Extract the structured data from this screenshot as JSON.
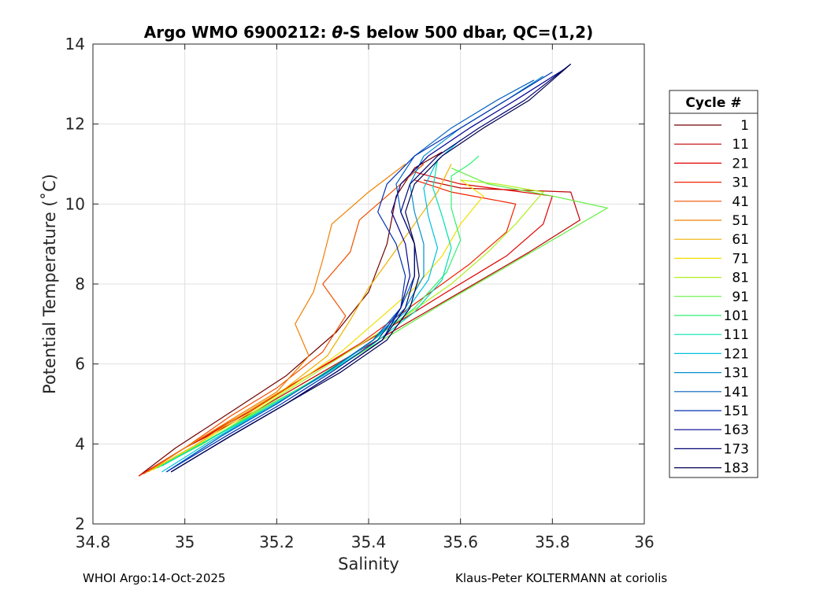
{
  "chart_data": {
    "type": "line",
    "title_prefix": "Argo WMO 6900212: ",
    "title_theta": "θ",
    "title_suffix": "-S below 500 dbar,  QC=(1,2)",
    "xlabel": "Salinity",
    "ylabel": "Potential Temperature (˚C)",
    "xlim": [
      34.8,
      36
    ],
    "ylim": [
      2,
      14
    ],
    "xticks": [
      "34.8",
      "35",
      "35.2",
      "35.4",
      "35.6",
      "35.8",
      "36"
    ],
    "yticks": [
      "2",
      "4",
      "6",
      "8",
      "10",
      "12",
      "14"
    ],
    "grid": true,
    "legend": {
      "title": "Cycle #",
      "position": "outside-right",
      "entries": [
        {
          "label": "1",
          "color": "#700000"
        },
        {
          "label": "11",
          "color": "#c00000"
        },
        {
          "label": "21",
          "color": "#e00000"
        },
        {
          "label": "31",
          "color": "#f02000"
        },
        {
          "label": "41",
          "color": "#f05000"
        },
        {
          "label": "51",
          "color": "#f08000"
        },
        {
          "label": "61",
          "color": "#f0b000"
        },
        {
          "label": "71",
          "color": "#f0e000"
        },
        {
          "label": "81",
          "color": "#b0f020"
        },
        {
          "label": "91",
          "color": "#60f040"
        },
        {
          "label": "101",
          "color": "#30f070"
        },
        {
          "label": "111",
          "color": "#00e0b0"
        },
        {
          "label": "121",
          "color": "#00c0e0"
        },
        {
          "label": "131",
          "color": "#0090d0"
        },
        {
          "label": "141",
          "color": "#0060c0"
        },
        {
          "label": "151",
          "color": "#0030b0"
        },
        {
          "label": "163",
          "color": "#000090"
        },
        {
          "label": "173",
          "color": "#000070"
        },
        {
          "label": "183",
          "color": "#000050"
        }
      ]
    },
    "series": [
      {
        "name": "1",
        "points": [
          [
            34.9,
            3.2
          ],
          [
            34.98,
            3.9
          ],
          [
            35.1,
            4.8
          ],
          [
            35.22,
            5.7
          ],
          [
            35.33,
            6.8
          ],
          [
            35.4,
            7.8
          ],
          [
            35.44,
            9.0
          ],
          [
            35.46,
            10.2
          ],
          [
            35.5,
            10.9
          ],
          [
            35.56,
            11.3
          ]
        ]
      },
      {
        "name": "11",
        "points": [
          [
            34.9,
            3.2
          ],
          [
            35.0,
            3.9
          ],
          [
            35.15,
            4.8
          ],
          [
            35.3,
            5.8
          ],
          [
            35.45,
            6.8
          ],
          [
            35.6,
            7.8
          ],
          [
            35.75,
            8.8
          ],
          [
            35.86,
            9.6
          ],
          [
            35.84,
            10.3
          ],
          [
            35.6,
            10.4
          ],
          [
            35.52,
            10.6
          ]
        ]
      },
      {
        "name": "21",
        "points": [
          [
            34.9,
            3.2
          ],
          [
            35.0,
            3.9
          ],
          [
            35.14,
            4.8
          ],
          [
            35.28,
            5.8
          ],
          [
            35.43,
            6.8
          ],
          [
            35.57,
            7.8
          ],
          [
            35.7,
            8.7
          ],
          [
            35.78,
            9.5
          ],
          [
            35.8,
            10.2
          ],
          [
            35.6,
            10.5
          ],
          [
            35.5,
            10.8
          ]
        ]
      },
      {
        "name": "31",
        "points": [
          [
            34.9,
            3.2
          ],
          [
            35.0,
            3.9
          ],
          [
            35.12,
            4.7
          ],
          [
            35.25,
            5.6
          ],
          [
            35.38,
            6.5
          ],
          [
            35.5,
            7.5
          ],
          [
            35.62,
            8.5
          ],
          [
            35.7,
            9.3
          ],
          [
            35.72,
            10.0
          ],
          [
            35.58,
            10.3
          ],
          [
            35.5,
            10.6
          ]
        ]
      },
      {
        "name": "41",
        "points": [
          [
            34.91,
            3.25
          ],
          [
            35.0,
            3.9
          ],
          [
            35.1,
            4.7
          ],
          [
            35.2,
            5.4
          ],
          [
            35.3,
            6.3
          ],
          [
            35.35,
            7.2
          ],
          [
            35.3,
            8.0
          ],
          [
            35.36,
            8.8
          ],
          [
            35.38,
            9.6
          ],
          [
            35.45,
            10.3
          ],
          [
            35.52,
            11.0
          ]
        ]
      },
      {
        "name": "51",
        "points": [
          [
            34.92,
            3.3
          ],
          [
            35.0,
            3.9
          ],
          [
            35.1,
            4.6
          ],
          [
            35.2,
            5.3
          ],
          [
            35.27,
            6.2
          ],
          [
            35.24,
            7.0
          ],
          [
            35.28,
            7.8
          ],
          [
            35.3,
            8.6
          ],
          [
            35.32,
            9.5
          ],
          [
            35.4,
            10.3
          ],
          [
            35.48,
            11.0
          ]
        ]
      },
      {
        "name": "61",
        "points": [
          [
            34.92,
            3.3
          ],
          [
            35.02,
            3.95
          ],
          [
            35.12,
            4.7
          ],
          [
            35.22,
            5.4
          ],
          [
            35.31,
            6.2
          ],
          [
            35.36,
            7.1
          ],
          [
            35.4,
            7.9
          ],
          [
            35.45,
            8.7
          ],
          [
            35.5,
            9.5
          ],
          [
            35.55,
            10.3
          ],
          [
            35.58,
            11.0
          ]
        ]
      },
      {
        "name": "71",
        "points": [
          [
            34.93,
            3.35
          ],
          [
            35.03,
            4.0
          ],
          [
            35.13,
            4.7
          ],
          [
            35.24,
            5.5
          ],
          [
            35.34,
            6.3
          ],
          [
            35.42,
            7.1
          ],
          [
            35.5,
            7.9
          ],
          [
            35.56,
            8.7
          ],
          [
            35.6,
            9.5
          ],
          [
            35.65,
            10.2
          ],
          [
            35.6,
            10.6
          ]
        ]
      },
      {
        "name": "81",
        "points": [
          [
            34.93,
            3.35
          ],
          [
            35.04,
            4.0
          ],
          [
            35.15,
            4.8
          ],
          [
            35.26,
            5.6
          ],
          [
            35.37,
            6.4
          ],
          [
            35.48,
            7.2
          ],
          [
            35.58,
            8.0
          ],
          [
            35.66,
            8.8
          ],
          [
            35.72,
            9.5
          ],
          [
            35.78,
            10.3
          ],
          [
            35.68,
            10.5
          ],
          [
            35.6,
            10.6
          ]
        ]
      },
      {
        "name": "91",
        "points": [
          [
            34.94,
            3.4
          ],
          [
            35.05,
            4.1
          ],
          [
            35.17,
            4.9
          ],
          [
            35.3,
            5.7
          ],
          [
            35.43,
            6.6
          ],
          [
            35.56,
            7.5
          ],
          [
            35.68,
            8.3
          ],
          [
            35.8,
            9.1
          ],
          [
            35.92,
            9.9
          ],
          [
            35.8,
            10.2
          ],
          [
            35.66,
            10.5
          ],
          [
            35.58,
            10.9
          ]
        ]
      },
      {
        "name": "101",
        "points": [
          [
            34.94,
            3.4
          ],
          [
            35.05,
            4.1
          ],
          [
            35.16,
            4.8
          ],
          [
            35.28,
            5.6
          ],
          [
            35.4,
            6.5
          ],
          [
            35.5,
            7.4
          ],
          [
            35.57,
            8.3
          ],
          [
            35.6,
            9.1
          ],
          [
            35.58,
            9.9
          ],
          [
            35.58,
            10.7
          ],
          [
            35.62,
            11.0
          ],
          [
            35.64,
            11.2
          ]
        ]
      },
      {
        "name": "111",
        "points": [
          [
            34.95,
            3.45
          ],
          [
            35.06,
            4.15
          ],
          [
            35.18,
            4.9
          ],
          [
            35.3,
            5.7
          ],
          [
            35.41,
            6.5
          ],
          [
            35.5,
            7.3
          ],
          [
            35.56,
            8.1
          ],
          [
            35.58,
            8.9
          ],
          [
            35.56,
            9.7
          ],
          [
            35.54,
            10.4
          ],
          [
            35.55,
            11.1
          ]
        ]
      },
      {
        "name": "121",
        "points": [
          [
            34.95,
            3.3
          ],
          [
            35.06,
            4.1
          ],
          [
            35.18,
            4.9
          ],
          [
            35.3,
            5.7
          ],
          [
            35.4,
            6.5
          ],
          [
            35.48,
            7.3
          ],
          [
            35.53,
            8.1
          ],
          [
            35.55,
            8.9
          ],
          [
            35.53,
            9.7
          ],
          [
            35.52,
            10.4
          ],
          [
            35.55,
            11.1
          ],
          [
            35.6,
            11.6
          ]
        ]
      },
      {
        "name": "131",
        "points": [
          [
            34.96,
            3.3
          ],
          [
            35.08,
            4.2
          ],
          [
            35.2,
            5.0
          ],
          [
            35.31,
            5.8
          ],
          [
            35.41,
            6.6
          ],
          [
            35.48,
            7.4
          ],
          [
            35.52,
            8.2
          ],
          [
            35.52,
            9.0
          ],
          [
            35.5,
            9.8
          ],
          [
            35.49,
            10.5
          ],
          [
            35.52,
            11.2
          ],
          [
            35.6,
            11.9
          ],
          [
            35.7,
            12.6
          ],
          [
            35.78,
            13.2
          ]
        ]
      },
      {
        "name": "141",
        "points": [
          [
            34.96,
            3.3
          ],
          [
            35.08,
            4.2
          ],
          [
            35.2,
            5.0
          ],
          [
            35.31,
            5.8
          ],
          [
            35.41,
            6.6
          ],
          [
            35.47,
            7.4
          ],
          [
            35.5,
            8.2
          ],
          [
            35.5,
            9.0
          ],
          [
            35.47,
            9.8
          ],
          [
            35.46,
            10.5
          ],
          [
            35.5,
            11.2
          ],
          [
            35.58,
            11.9
          ],
          [
            35.68,
            12.6
          ],
          [
            35.76,
            13.1
          ]
        ]
      },
      {
        "name": "151",
        "points": [
          [
            34.96,
            3.3
          ],
          [
            35.09,
            4.2
          ],
          [
            35.21,
            5.0
          ],
          [
            35.32,
            5.8
          ],
          [
            35.42,
            6.6
          ],
          [
            35.47,
            7.4
          ],
          [
            35.48,
            8.2
          ],
          [
            35.46,
            9.0
          ],
          [
            35.42,
            9.8
          ],
          [
            35.44,
            10.5
          ],
          [
            35.5,
            11.2
          ],
          [
            35.6,
            11.9
          ],
          [
            35.7,
            12.6
          ],
          [
            35.8,
            13.3
          ]
        ]
      },
      {
        "name": "163",
        "points": [
          [
            34.97,
            3.3
          ],
          [
            35.1,
            4.2
          ],
          [
            35.22,
            5.0
          ],
          [
            35.33,
            5.8
          ],
          [
            35.43,
            6.6
          ],
          [
            35.47,
            7.4
          ],
          [
            35.49,
            8.2
          ],
          [
            35.48,
            9.0
          ],
          [
            35.45,
            9.8
          ],
          [
            35.47,
            10.5
          ],
          [
            35.53,
            11.2
          ],
          [
            35.62,
            11.9
          ],
          [
            35.72,
            12.6
          ],
          [
            35.83,
            13.4
          ]
        ]
      },
      {
        "name": "173",
        "points": [
          [
            34.97,
            3.3
          ],
          [
            35.1,
            4.2
          ],
          [
            35.22,
            5.0
          ],
          [
            35.33,
            5.8
          ],
          [
            35.43,
            6.6
          ],
          [
            35.48,
            7.4
          ],
          [
            35.5,
            8.2
          ],
          [
            35.5,
            9.0
          ],
          [
            35.47,
            9.8
          ],
          [
            35.49,
            10.5
          ],
          [
            35.55,
            11.2
          ],
          [
            35.64,
            11.9
          ],
          [
            35.74,
            12.6
          ],
          [
            35.84,
            13.5
          ]
        ]
      },
      {
        "name": "183",
        "points": [
          [
            34.97,
            3.3
          ],
          [
            35.1,
            4.2
          ],
          [
            35.22,
            5.0
          ],
          [
            35.34,
            5.8
          ],
          [
            35.44,
            6.6
          ],
          [
            35.49,
            7.4
          ],
          [
            35.51,
            8.2
          ],
          [
            35.5,
            9.0
          ],
          [
            35.48,
            9.8
          ],
          [
            35.5,
            10.5
          ],
          [
            35.56,
            11.2
          ],
          [
            35.65,
            11.9
          ],
          [
            35.75,
            12.6
          ],
          [
            35.84,
            13.5
          ]
        ]
      }
    ]
  },
  "footer": {
    "left": "WHOI Argo:14-Oct-2025",
    "right": "Klaus-Peter KOLTERMANN at coriolis"
  }
}
